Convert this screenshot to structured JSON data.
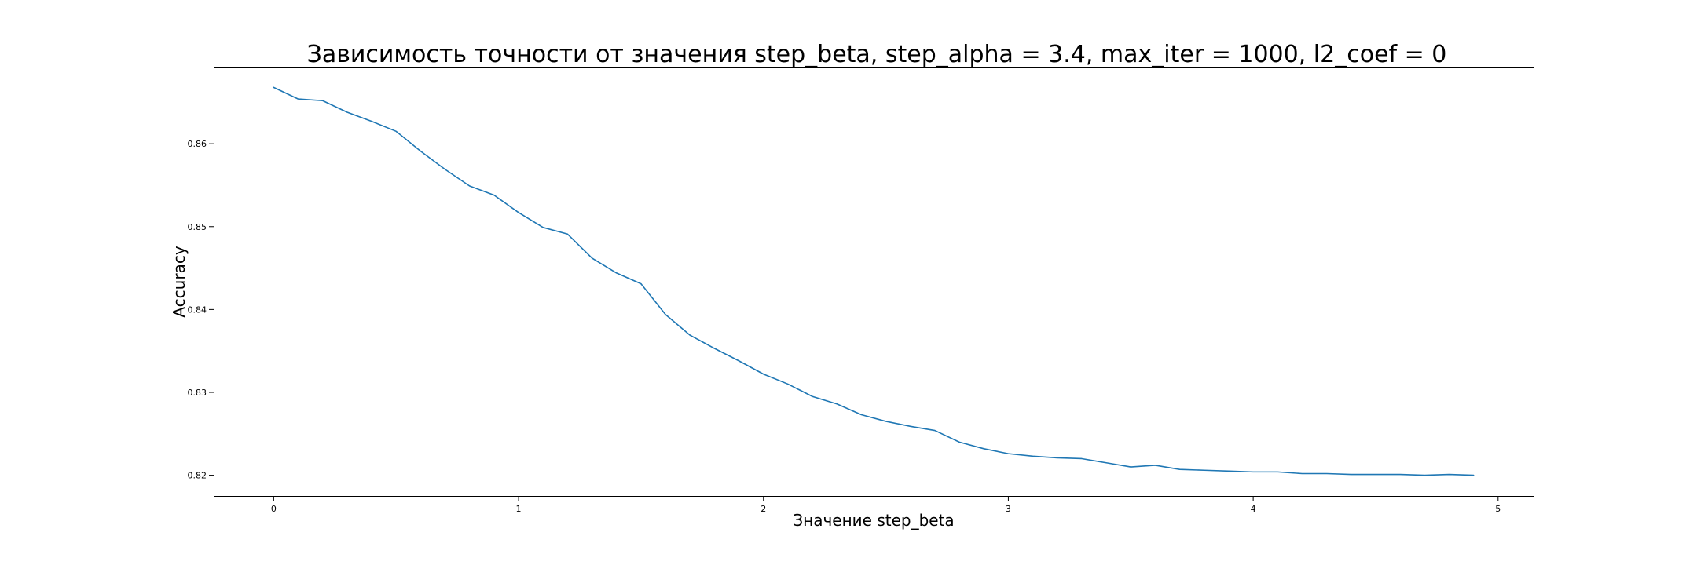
{
  "chart_data": {
    "type": "line",
    "title": "Зависимость точности от значения step_beta, step_alpha = 3.4, max_iter = 1000, l2_coef = 0",
    "xlabel": "Значение step_beta",
    "ylabel": "Accuracy",
    "xlim": [
      -0.245,
      5.145
    ],
    "ylim": [
      0.8175,
      0.8692
    ],
    "x_ticks": [
      0,
      1,
      2,
      3,
      4,
      5
    ],
    "x_tick_labels": [
      "0",
      "1",
      "2",
      "3",
      "4",
      "5"
    ],
    "y_ticks": [
      0.82,
      0.83,
      0.84,
      0.85,
      0.86
    ],
    "y_tick_labels": [
      "0.82",
      "0.83",
      "0.84",
      "0.85",
      "0.86"
    ],
    "grid": false,
    "legend": "none",
    "color": "#1f77b4",
    "series": [
      {
        "x": [
          0.0,
          0.1,
          0.2,
          0.3,
          0.4,
          0.5,
          0.6,
          0.7,
          0.8,
          0.9,
          1.0,
          1.1,
          1.2,
          1.3,
          1.4,
          1.5,
          1.6,
          1.7,
          1.8,
          1.9,
          2.0,
          2.1,
          2.2,
          2.3,
          2.4,
          2.5,
          2.6,
          2.7,
          2.8,
          2.9,
          3.0,
          3.1,
          3.2,
          3.3,
          3.4,
          3.5,
          3.6,
          3.7,
          3.8,
          3.9,
          4.0,
          4.1,
          4.2,
          4.3,
          4.4,
          4.5,
          4.6,
          4.7,
          4.8,
          4.9
        ],
        "y": [
          0.8668,
          0.8654,
          0.8652,
          0.8638,
          0.8627,
          0.8615,
          0.8591,
          0.8569,
          0.8549,
          0.8538,
          0.8517,
          0.8499,
          0.8491,
          0.8462,
          0.8444,
          0.8431,
          0.8394,
          0.8369,
          0.8353,
          0.8338,
          0.8322,
          0.831,
          0.8295,
          0.8286,
          0.8273,
          0.8265,
          0.8259,
          0.8254,
          0.824,
          0.8232,
          0.8226,
          0.8223,
          0.8221,
          0.822,
          0.8215,
          0.821,
          0.8212,
          0.8207,
          0.8206,
          0.8205,
          0.8204,
          0.8204,
          0.8202,
          0.8202,
          0.8201,
          0.8201,
          0.8201,
          0.82,
          0.8201,
          0.82
        ]
      }
    ]
  }
}
